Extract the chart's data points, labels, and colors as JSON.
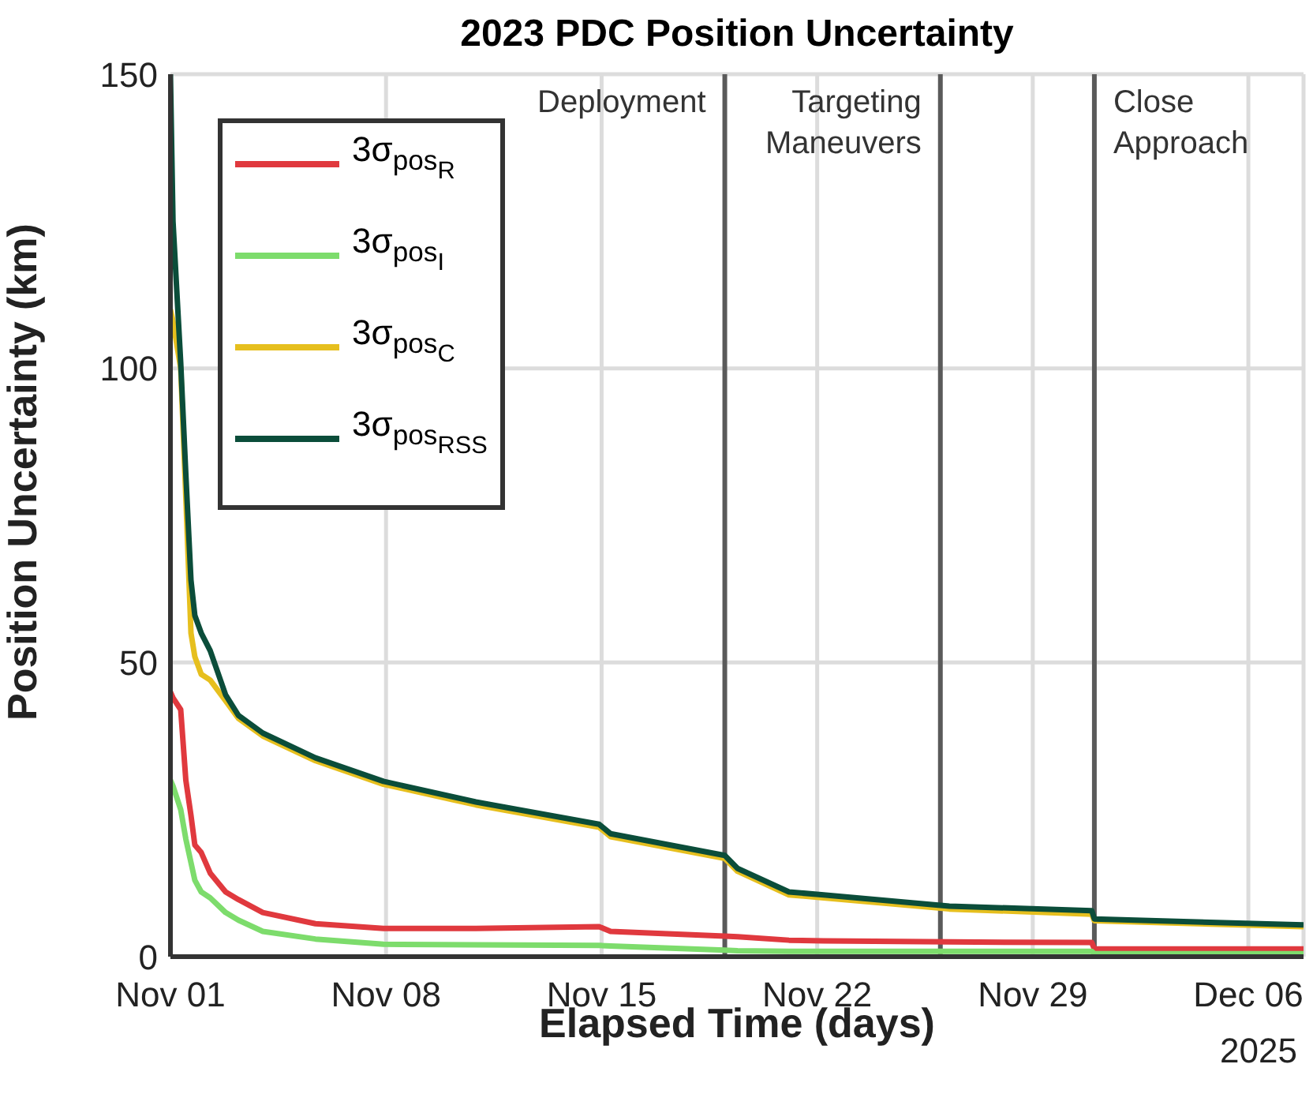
{
  "chart_data": {
    "type": "line",
    "title": "2023 PDC Position Uncertainty",
    "xlabel": "Elapsed Time (days)",
    "ylabel": "Position Uncertainty (km)",
    "x": [
      "2025-11-01T00:00",
      "2025-11-01T02:00",
      "2025-11-01T08:00",
      "2025-11-01T12:00",
      "2025-11-01T16:00",
      "2025-11-01T19:00",
      "2025-11-02T00:00",
      "2025-11-02T07:00",
      "2025-11-02T19:00",
      "2025-11-03T05:00",
      "2025-11-04T00:00",
      "2025-11-05T17:00",
      "2025-11-07T22:00",
      "2025-11-10T22:00",
      "2025-11-14T22:00",
      "2025-11-15T07:00",
      "2025-11-19T00:00",
      "2025-11-19T10:00",
      "2025-11-21T02:00",
      "2025-11-22T05:00",
      "2025-11-26T07:00",
      "2025-11-30T22:00",
      "2025-12-01T00:00",
      "2025-12-07T19:00"
    ],
    "series": [
      {
        "name": "3σ$_{pos}$$_{R}$",
        "color": "#e0393e",
        "values": [
          45,
          44,
          42,
          30,
          24,
          19,
          17.7,
          14.2,
          11,
          9.7,
          7.5,
          5.6,
          4.8,
          4.8,
          5.1,
          4.3,
          3.5,
          3.4,
          2.8,
          2.7,
          2.5,
          2.4,
          1.3,
          1.3
        ]
      },
      {
        "name": "3σ$_{pos}$$_{I}$",
        "color": "#7ddc6c",
        "values": [
          30,
          29,
          25,
          20,
          16,
          13,
          11,
          10,
          7.5,
          6.2,
          4.3,
          3,
          2.1,
          2,
          1.9,
          1.8,
          1.1,
          1,
          0.9,
          0.9,
          0.9,
          0.9,
          0.5,
          0.5
        ]
      },
      {
        "name": "3σ$_{pos}$$_{C}$",
        "color": "#e6bf1e",
        "values": [
          110,
          108,
          100,
          78,
          55,
          51,
          48,
          47,
          43.5,
          40.5,
          37.5,
          33.3,
          29.3,
          25.8,
          22,
          20.4,
          16.7,
          14.5,
          10.5,
          10,
          8.1,
          7.2,
          6.1,
          5.1
        ]
      },
      {
        "name": "3σ$_{pos}$$_{RSS}$",
        "color": "#0b4d3a",
        "values": [
          150,
          125,
          101,
          82,
          64,
          58,
          55,
          52,
          44.5,
          41,
          38,
          33.8,
          29.8,
          26.3,
          22.5,
          20.9,
          17.2,
          15,
          11,
          10.5,
          8.6,
          7.8,
          6.4,
          5.4
        ]
      }
    ],
    "xlim": [
      "2025-11-01",
      "2025-12-07T19:00"
    ],
    "xticks": [
      {
        "value": "2025-11-01",
        "label": "Nov 01"
      },
      {
        "value": "2025-11-08",
        "label": "Nov 08"
      },
      {
        "value": "2025-11-15",
        "label": "Nov 15"
      },
      {
        "value": "2025-11-22",
        "label": "Nov 22"
      },
      {
        "value": "2025-11-29",
        "label": "Nov 29"
      },
      {
        "value": "2025-12-06",
        "label": "Dec 06"
      }
    ],
    "ylim": [
      0,
      150
    ],
    "yticks": [
      0,
      50,
      100,
      150
    ],
    "ref_lines": [
      {
        "axis": "x",
        "value": "2025-11-19",
        "label": "Deployment",
        "color": "#5a5a5a"
      },
      {
        "axis": "x",
        "value": "2025-11-26",
        "label": "Targeting Maneuvers",
        "color": "#5a5a5a"
      },
      {
        "axis": "x",
        "value": "2025-12-01",
        "label": "Close Approach",
        "color": "#5a5a5a"
      }
    ],
    "annotations": [
      "2025"
    ],
    "grid": true,
    "legend": "top left",
    "marker": "none",
    "line_style": "solid"
  }
}
